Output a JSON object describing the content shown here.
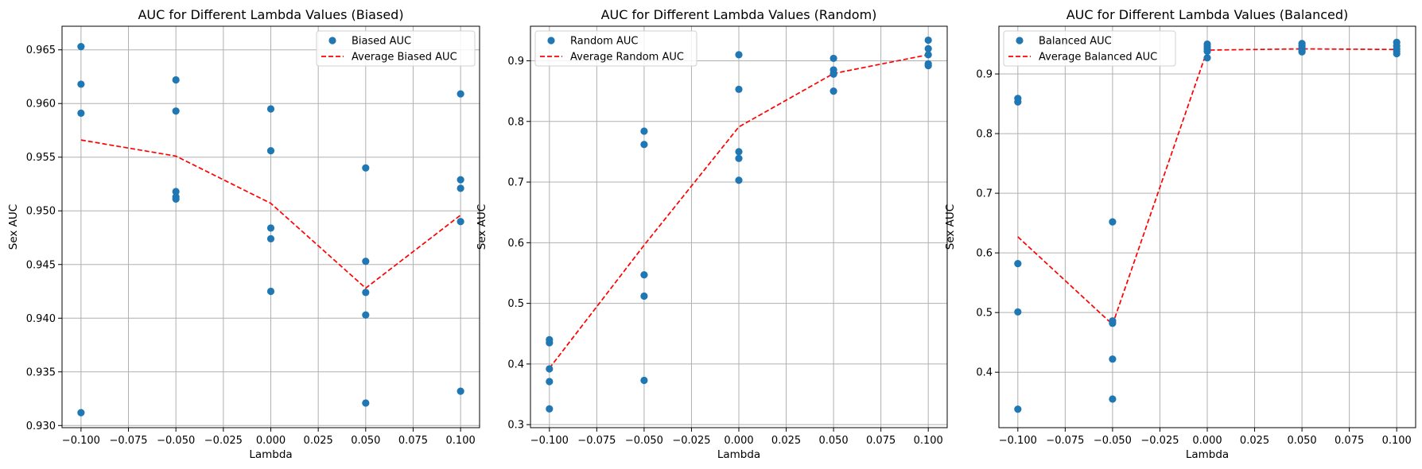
{
  "chart_data": [
    {
      "type": "scatter",
      "title": "AUC for Different Lambda Values (Biased)",
      "xlabel": "Lambda",
      "ylabel": "Sex AUC",
      "xlim": [
        -0.11,
        0.11
      ],
      "ylim": [
        0.9298,
        0.9672
      ],
      "xticks": [
        -0.1,
        -0.075,
        -0.05,
        -0.025,
        0.0,
        0.025,
        0.05,
        0.075,
        0.1
      ],
      "xtick_labels": [
        "−0.100",
        "−0.075",
        "−0.050",
        "−0.025",
        "0.000",
        "0.025",
        "0.050",
        "0.075",
        "0.100"
      ],
      "yticks": [
        0.93,
        0.935,
        0.94,
        0.945,
        0.95,
        0.955,
        0.96,
        0.965
      ],
      "ytick_labels": [
        "0.930",
        "0.935",
        "0.940",
        "0.945",
        "0.950",
        "0.955",
        "0.960",
        "0.965"
      ],
      "grid": true,
      "legend_position": "top-right",
      "series": [
        {
          "name": "Biased AUC",
          "kind": "scatter",
          "color": "#1f77b4",
          "x": [
            -0.1,
            -0.1,
            -0.1,
            -0.1,
            -0.05,
            -0.05,
            -0.05,
            -0.05,
            -0.05,
            0.0,
            0.0,
            0.0,
            0.0,
            0.0,
            0.05,
            0.05,
            0.05,
            0.05,
            0.05,
            0.1,
            0.1,
            0.1,
            0.1,
            0.1
          ],
          "y": [
            0.9653,
            0.9618,
            0.9591,
            0.9312,
            0.9622,
            0.9593,
            0.9518,
            0.9513,
            0.9511,
            0.9595,
            0.9556,
            0.9484,
            0.9474,
            0.9425,
            0.954,
            0.9453,
            0.9424,
            0.9403,
            0.9321,
            0.9609,
            0.9529,
            0.9521,
            0.949,
            0.9332
          ]
        },
        {
          "name": "Average Biased AUC",
          "kind": "line",
          "color": "#ff0000",
          "dashed": true,
          "x": [
            -0.1,
            -0.05,
            0.0,
            0.05,
            0.1
          ],
          "y": [
            0.9566,
            0.9551,
            0.9507,
            0.9428,
            0.9496
          ]
        }
      ]
    },
    {
      "type": "scatter",
      "title": "AUC for Different Lambda Values (Random)",
      "xlabel": "Lambda",
      "ylabel": "Sex AUC",
      "xlim": [
        -0.11,
        0.11
      ],
      "ylim": [
        0.295,
        0.957
      ],
      "xticks": [
        -0.1,
        -0.075,
        -0.05,
        -0.025,
        0.0,
        0.025,
        0.05,
        0.075,
        0.1
      ],
      "xtick_labels": [
        "−0.100",
        "−0.075",
        "−0.050",
        "−0.025",
        "0.000",
        "0.025",
        "0.050",
        "0.075",
        "0.100"
      ],
      "yticks": [
        0.3,
        0.4,
        0.5,
        0.6,
        0.7,
        0.8,
        0.9
      ],
      "ytick_labels": [
        "0.3",
        "0.4",
        "0.5",
        "0.6",
        "0.7",
        "0.8",
        "0.9"
      ],
      "grid": true,
      "legend_position": "top-left",
      "series": [
        {
          "name": "Random AUC",
          "kind": "scatter",
          "color": "#1f77b4",
          "x": [
            -0.1,
            -0.1,
            -0.1,
            -0.1,
            -0.1,
            -0.05,
            -0.05,
            -0.05,
            -0.05,
            -0.05,
            0.0,
            0.0,
            0.0,
            0.0,
            0.0,
            0.05,
            0.05,
            0.05,
            0.05,
            0.05,
            0.1,
            0.1,
            0.1,
            0.1,
            0.1
          ],
          "y": [
            0.44,
            0.435,
            0.392,
            0.371,
            0.326,
            0.784,
            0.762,
            0.547,
            0.512,
            0.373,
            0.91,
            0.853,
            0.75,
            0.739,
            0.703,
            0.904,
            0.885,
            0.879,
            0.85,
            0.878,
            0.934,
            0.92,
            0.91,
            0.895,
            0.892
          ]
        },
        {
          "name": "Average Random AUC",
          "kind": "line",
          "color": "#ff0000",
          "dashed": true,
          "x": [
            -0.1,
            -0.05,
            0.0,
            0.05,
            0.1
          ],
          "y": [
            0.393,
            0.596,
            0.791,
            0.879,
            0.91
          ]
        }
      ]
    },
    {
      "type": "scatter",
      "title": "AUC for Different Lambda Values (Balanced)",
      "xlabel": "Lambda",
      "ylabel": "Sex AUC",
      "xlim": [
        -0.11,
        0.11
      ],
      "ylim": [
        0.307,
        0.98
      ],
      "xticks": [
        -0.1,
        -0.075,
        -0.05,
        -0.025,
        0.0,
        0.025,
        0.05,
        0.075,
        0.1
      ],
      "xtick_labels": [
        "−0.100",
        "−0.075",
        "−0.050",
        "−0.025",
        "0.000",
        "0.025",
        "0.050",
        "0.075",
        "0.100"
      ],
      "yticks": [
        0.4,
        0.5,
        0.6,
        0.7,
        0.8,
        0.9
      ],
      "ytick_labels": [
        "0.4",
        "0.5",
        "0.6",
        "0.7",
        "0.8",
        "0.9"
      ],
      "grid": true,
      "legend_position": "top-left",
      "series": [
        {
          "name": "Balanced AUC",
          "kind": "scatter",
          "color": "#1f77b4",
          "x": [
            -0.1,
            -0.1,
            -0.1,
            -0.1,
            -0.1,
            -0.05,
            -0.05,
            -0.05,
            -0.05,
            -0.05,
            0.0,
            0.0,
            0.0,
            0.0,
            0.0,
            0.05,
            0.05,
            0.05,
            0.05,
            0.05,
            0.1,
            0.1,
            0.1,
            0.1,
            0.1
          ],
          "y": [
            0.859,
            0.853,
            0.582,
            0.501,
            0.338,
            0.652,
            0.486,
            0.482,
            0.422,
            0.355,
            0.95,
            0.946,
            0.942,
            0.938,
            0.927,
            0.951,
            0.947,
            0.943,
            0.939,
            0.937,
            0.953,
            0.947,
            0.942,
            0.938,
            0.934
          ]
        },
        {
          "name": "Average Balanced AUC",
          "kind": "line",
          "color": "#ff0000",
          "dashed": true,
          "x": [
            -0.1,
            -0.05,
            0.0,
            0.05,
            0.1
          ],
          "y": [
            0.627,
            0.48,
            0.94,
            0.942,
            0.941
          ]
        }
      ]
    }
  ]
}
